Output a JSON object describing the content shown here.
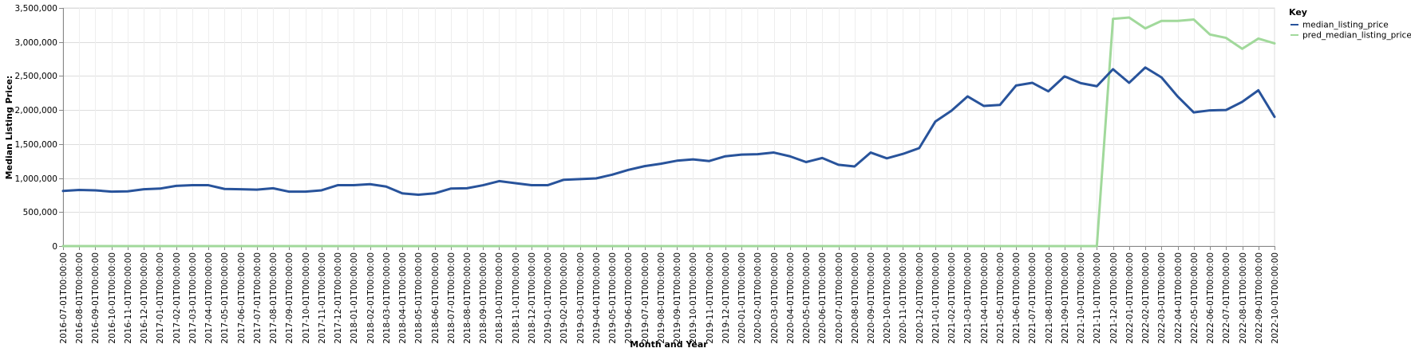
{
  "chart_data": {
    "type": "line",
    "xlabel": "Month and Year",
    "ylabel": "Median Listing Price:",
    "ylim": [
      0,
      3500000
    ],
    "yticks": [
      "0",
      "500,000",
      "1,000,000",
      "1,500,000",
      "2,000,000",
      "2,500,000",
      "3,000,000",
      "3,500,000"
    ],
    "ytick_values": [
      0,
      500000,
      1000000,
      1500000,
      2000000,
      2500000,
      3000000,
      3500000
    ],
    "grid": true,
    "legend_position": "right",
    "legend_title": "Key",
    "x": [
      "2016-07-01T00:00:00",
      "2016-08-01T00:00:00",
      "2016-09-01T00:00:00",
      "2016-10-01T00:00:00",
      "2016-11-01T00:00:00",
      "2016-12-01T00:00:00",
      "2017-01-01T00:00:00",
      "2017-02-01T00:00:00",
      "2017-03-01T00:00:00",
      "2017-04-01T00:00:00",
      "2017-05-01T00:00:00",
      "2017-06-01T00:00:00",
      "2017-07-01T00:00:00",
      "2017-08-01T00:00:00",
      "2017-09-01T00:00:00",
      "2017-10-01T00:00:00",
      "2017-11-01T00:00:00",
      "2017-12-01T00:00:00",
      "2018-01-01T00:00:00",
      "2018-02-01T00:00:00",
      "2018-03-01T00:00:00",
      "2018-04-01T00:00:00",
      "2018-05-01T00:00:00",
      "2018-06-01T00:00:00",
      "2018-07-01T00:00:00",
      "2018-08-01T00:00:00",
      "2018-09-01T00:00:00",
      "2018-10-01T00:00:00",
      "2018-11-01T00:00:00",
      "2018-12-01T00:00:00",
      "2019-01-01T00:00:00",
      "2019-02-01T00:00:00",
      "2019-03-01T00:00:00",
      "2019-04-01T00:00:00",
      "2019-05-01T00:00:00",
      "2019-06-01T00:00:00",
      "2019-07-01T00:00:00",
      "2019-08-01T00:00:00",
      "2019-09-01T00:00:00",
      "2019-10-01T00:00:00",
      "2019-11-01T00:00:00",
      "2019-12-01T00:00:00",
      "2020-01-01T00:00:00",
      "2020-02-01T00:00:00",
      "2020-03-01T00:00:00",
      "2020-04-01T00:00:00",
      "2020-05-01T00:00:00",
      "2020-06-01T00:00:00",
      "2020-07-01T00:00:00",
      "2020-08-01T00:00:00",
      "2020-09-01T00:00:00",
      "2020-10-01T00:00:00",
      "2020-11-01T00:00:00",
      "2020-12-01T00:00:00",
      "2021-01-01T00:00:00",
      "2021-02-01T00:00:00",
      "2021-03-01T00:00:00",
      "2021-04-01T00:00:00",
      "2021-05-01T00:00:00",
      "2021-06-01T00:00:00",
      "2021-07-01T00:00:00",
      "2021-08-01T00:00:00",
      "2021-09-01T00:00:00",
      "2021-10-01T00:00:00",
      "2021-11-01T00:00:00",
      "2021-12-01T00:00:00",
      "2022-01-01T00:00:00",
      "2022-02-01T00:00:00",
      "2022-03-01T00:00:00",
      "2022-04-01T00:00:00",
      "2022-05-01T00:00:00",
      "2022-06-01T00:00:00",
      "2022-07-01T00:00:00",
      "2022-08-01T00:00:00",
      "2022-09-01T00:00:00",
      "2022-10-01T00:00:00"
    ],
    "series": [
      {
        "name": "median_listing_price",
        "color": "#28539b",
        "values": [
          810000,
          825000,
          820000,
          800000,
          805000,
          835000,
          845000,
          885000,
          895000,
          895000,
          840000,
          835000,
          830000,
          850000,
          800000,
          800000,
          820000,
          895000,
          895000,
          910000,
          875000,
          775000,
          755000,
          775000,
          845000,
          850000,
          895000,
          955000,
          925000,
          895000,
          895000,
          975000,
          985000,
          995000,
          1050000,
          1120000,
          1175000,
          1210000,
          1255000,
          1275000,
          1250000,
          1320000,
          1345000,
          1350000,
          1375000,
          1320000,
          1235000,
          1295000,
          1195000,
          1170000,
          1375000,
          1290000,
          1355000,
          1440000,
          1830000,
          1990000,
          2200000,
          2060000,
          2075000,
          2360000,
          2400000,
          2275000,
          2495000,
          2395000,
          2350000,
          2600000,
          2400000,
          2625000,
          2480000,
          2200000,
          1965000,
          1995000,
          2000000,
          2120000,
          2290000,
          1900000
        ]
      },
      {
        "name": "pred_median_listing_price",
        "color": "#a1d99b",
        "values": [
          0,
          0,
          0,
          0,
          0,
          0,
          0,
          0,
          0,
          0,
          0,
          0,
          0,
          0,
          0,
          0,
          0,
          0,
          0,
          0,
          0,
          0,
          0,
          0,
          0,
          0,
          0,
          0,
          0,
          0,
          0,
          0,
          0,
          0,
          0,
          0,
          0,
          0,
          0,
          0,
          0,
          0,
          0,
          0,
          0,
          0,
          0,
          0,
          0,
          0,
          0,
          0,
          0,
          0,
          0,
          0,
          0,
          0,
          0,
          0,
          0,
          0,
          0,
          0,
          0,
          3340000,
          3360000,
          3200000,
          3310000,
          3310000,
          3330000,
          3110000,
          3060000,
          2900000,
          3050000,
          2980000
        ]
      }
    ]
  }
}
